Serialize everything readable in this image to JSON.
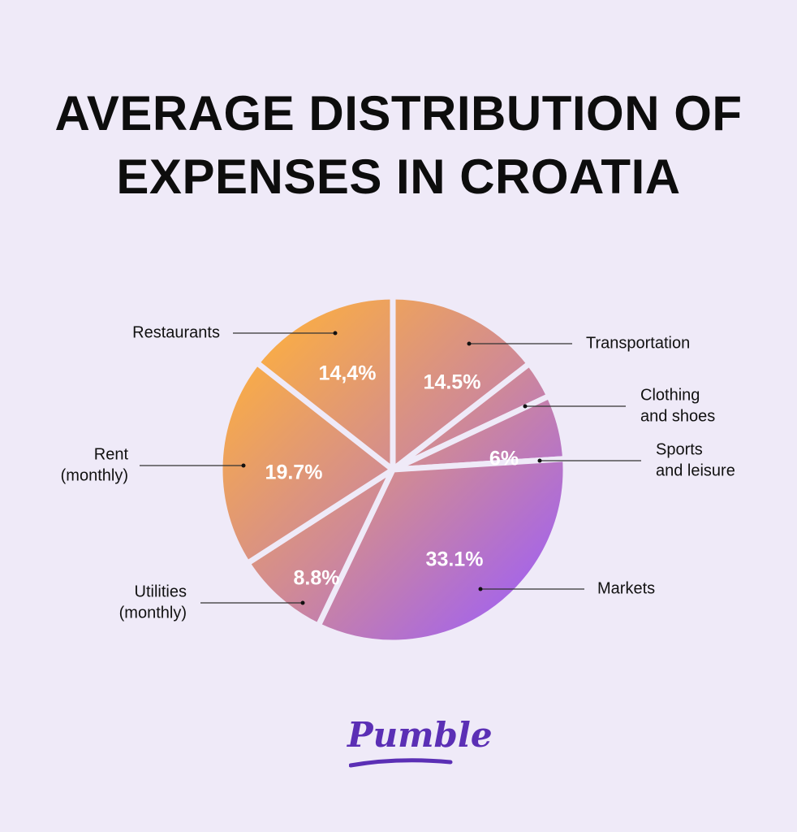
{
  "chart_data": {
    "type": "pie",
    "title": "AVERAGE DISTRIBUTION OF EXPENSES IN CROATIA",
    "title_lines": [
      "AVERAGE DISTRIBUTION OF",
      "EXPENSES IN CROATIA"
    ],
    "slices": [
      {
        "name": "Transportation",
        "label_lines": [
          "Transportation"
        ],
        "value": 14.5,
        "value_label": "14.5%"
      },
      {
        "name": "Clothing and shoes",
        "label_lines": [
          "Clothing",
          "and shoes"
        ],
        "value": 3.5,
        "value_label": ""
      },
      {
        "name": "Sports and leisure",
        "label_lines": [
          "Sports",
          "and leisure"
        ],
        "value": 6,
        "value_label": "6%"
      },
      {
        "name": "Markets",
        "label_lines": [
          "Markets"
        ],
        "value": 33.1,
        "value_label": "33.1%"
      },
      {
        "name": "Utilities (monthly)",
        "label_lines": [
          "Utilities",
          "(monthly)"
        ],
        "value": 8.8,
        "value_label": "8.8%"
      },
      {
        "name": "Rent (monthly)",
        "label_lines": [
          "Rent",
          "(monthly)"
        ],
        "value": 19.7,
        "value_label": "19.7%"
      },
      {
        "name": "Restaurants",
        "label_lines": [
          "Restaurants"
        ],
        "value": 14.4,
        "value_label": "14,4%"
      }
    ],
    "gradient": {
      "from": "#FFB13B",
      "to": "#9A5BFF"
    },
    "legend": "none"
  },
  "colors": {
    "background": "#EFEAF8",
    "title": "#0D0D0D",
    "logo": "#5B2FB5"
  },
  "logo": {
    "text": "Pumble"
  }
}
